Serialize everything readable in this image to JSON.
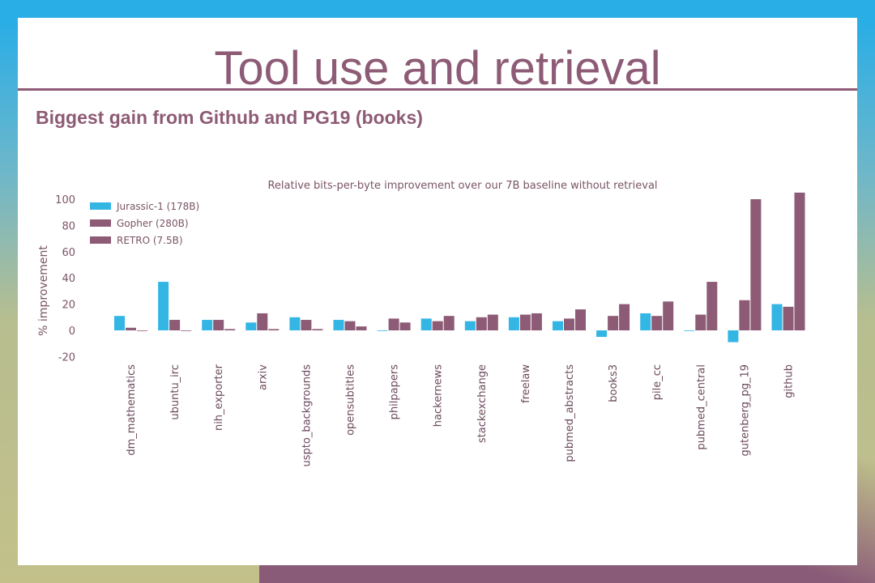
{
  "slide": {
    "title": "Tool use and retrieval",
    "subtitle": "Biggest gain from Github and PG19 (books)"
  },
  "colors": {
    "accent": "#8d5b75",
    "jurassic": "#34b6e4",
    "gopher": "#8d5b75",
    "retro": "#8d5b75"
  },
  "chart_data": {
    "type": "bar",
    "title": "Relative bits-per-byte improvement over our 7B baseline without retrieval",
    "xlabel": "",
    "ylabel": "% improvement",
    "ylim": [
      -20,
      105
    ],
    "yticks": [
      100,
      80,
      60,
      40,
      20,
      0,
      -20
    ],
    "grid": false,
    "legend_position": "top-left",
    "categories": [
      "dm_mathematics",
      "ubuntu_irc",
      "nih_exporter",
      "arxiv",
      "uspto_backgrounds",
      "opensubtitles",
      "philpapers",
      "hackernews",
      "stackexchange",
      "freelaw",
      "pubmed_abstracts",
      "books3",
      "pile_cc",
      "pubmed_central",
      "gutenberg_pg_19",
      "github"
    ],
    "series": [
      {
        "name": "Jurassic-1 (178B)",
        "values": [
          11,
          37,
          8,
          6,
          10,
          8,
          0,
          9,
          7,
          10,
          7,
          -5,
          13,
          0,
          -9,
          20
        ]
      },
      {
        "name": "Gopher (280B)",
        "values": [
          2,
          8,
          8,
          13,
          8,
          7,
          9,
          7,
          10,
          12,
          9,
          11,
          11,
          12,
          23,
          18
        ]
      },
      {
        "name": "RETRO (7.5B)",
        "values": [
          0,
          0,
          1,
          1,
          1,
          3,
          6,
          11,
          12,
          13,
          16,
          20,
          22,
          37,
          100,
          105
        ]
      }
    ]
  }
}
